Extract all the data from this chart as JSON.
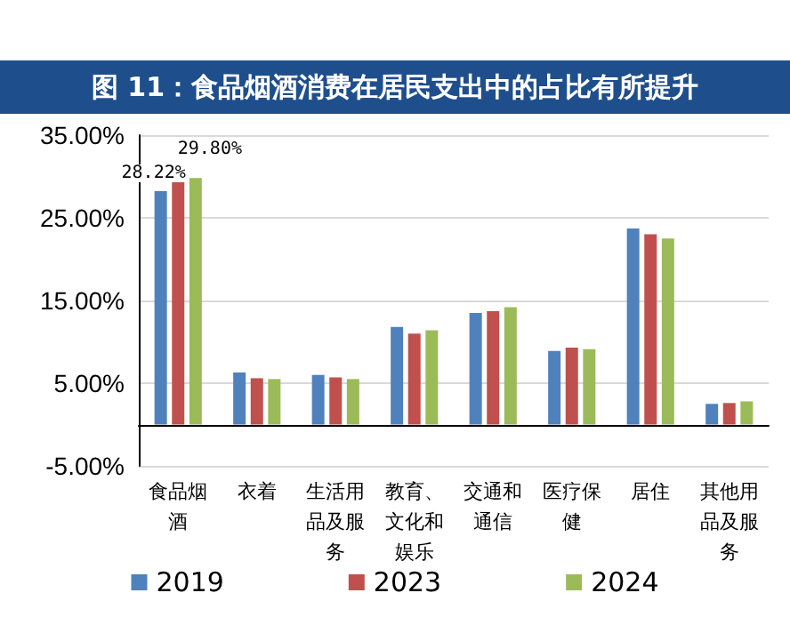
{
  "chart_data": {
    "type": "bar",
    "title": "图 11：食品烟酒消费在居民支出中的占比有所提升",
    "categories": [
      "食品烟酒",
      "衣着",
      "生活用品及服务",
      "教育、文化和娱乐",
      "交通和通信",
      "医疗保健",
      "居住",
      "其他用品及服务"
    ],
    "series": [
      {
        "name": "2019",
        "color": "#4f81bd",
        "values": [
          28.22,
          6.3,
          6.0,
          11.8,
          13.5,
          8.9,
          23.7,
          2.5
        ],
        "value_labels": [
          "28.22%",
          null,
          null,
          null,
          null,
          null,
          null,
          null
        ]
      },
      {
        "name": "2023",
        "color": "#c0504d",
        "values": [
          29.8,
          5.6,
          5.7,
          11.0,
          13.7,
          9.3,
          23.0,
          2.6
        ]
      },
      {
        "name": "2024",
        "color": "#9bbb59",
        "values": [
          29.8,
          5.5,
          5.5,
          11.4,
          14.2,
          9.1,
          22.5,
          2.8
        ],
        "value_labels": [
          "29.80%",
          null,
          null,
          null,
          null,
          null,
          null,
          null
        ]
      }
    ],
    "ylim": [
      -5,
      35
    ],
    "yticks": [
      {
        "value": -5,
        "label": "-5.00%"
      },
      {
        "value": 5,
        "label": "5.00%"
      },
      {
        "value": 15,
        "label": "15.00%"
      },
      {
        "value": 25,
        "label": "25.00%"
      },
      {
        "value": 35,
        "label": "35.00%"
      }
    ],
    "grid": "y",
    "legend": "bottom"
  }
}
